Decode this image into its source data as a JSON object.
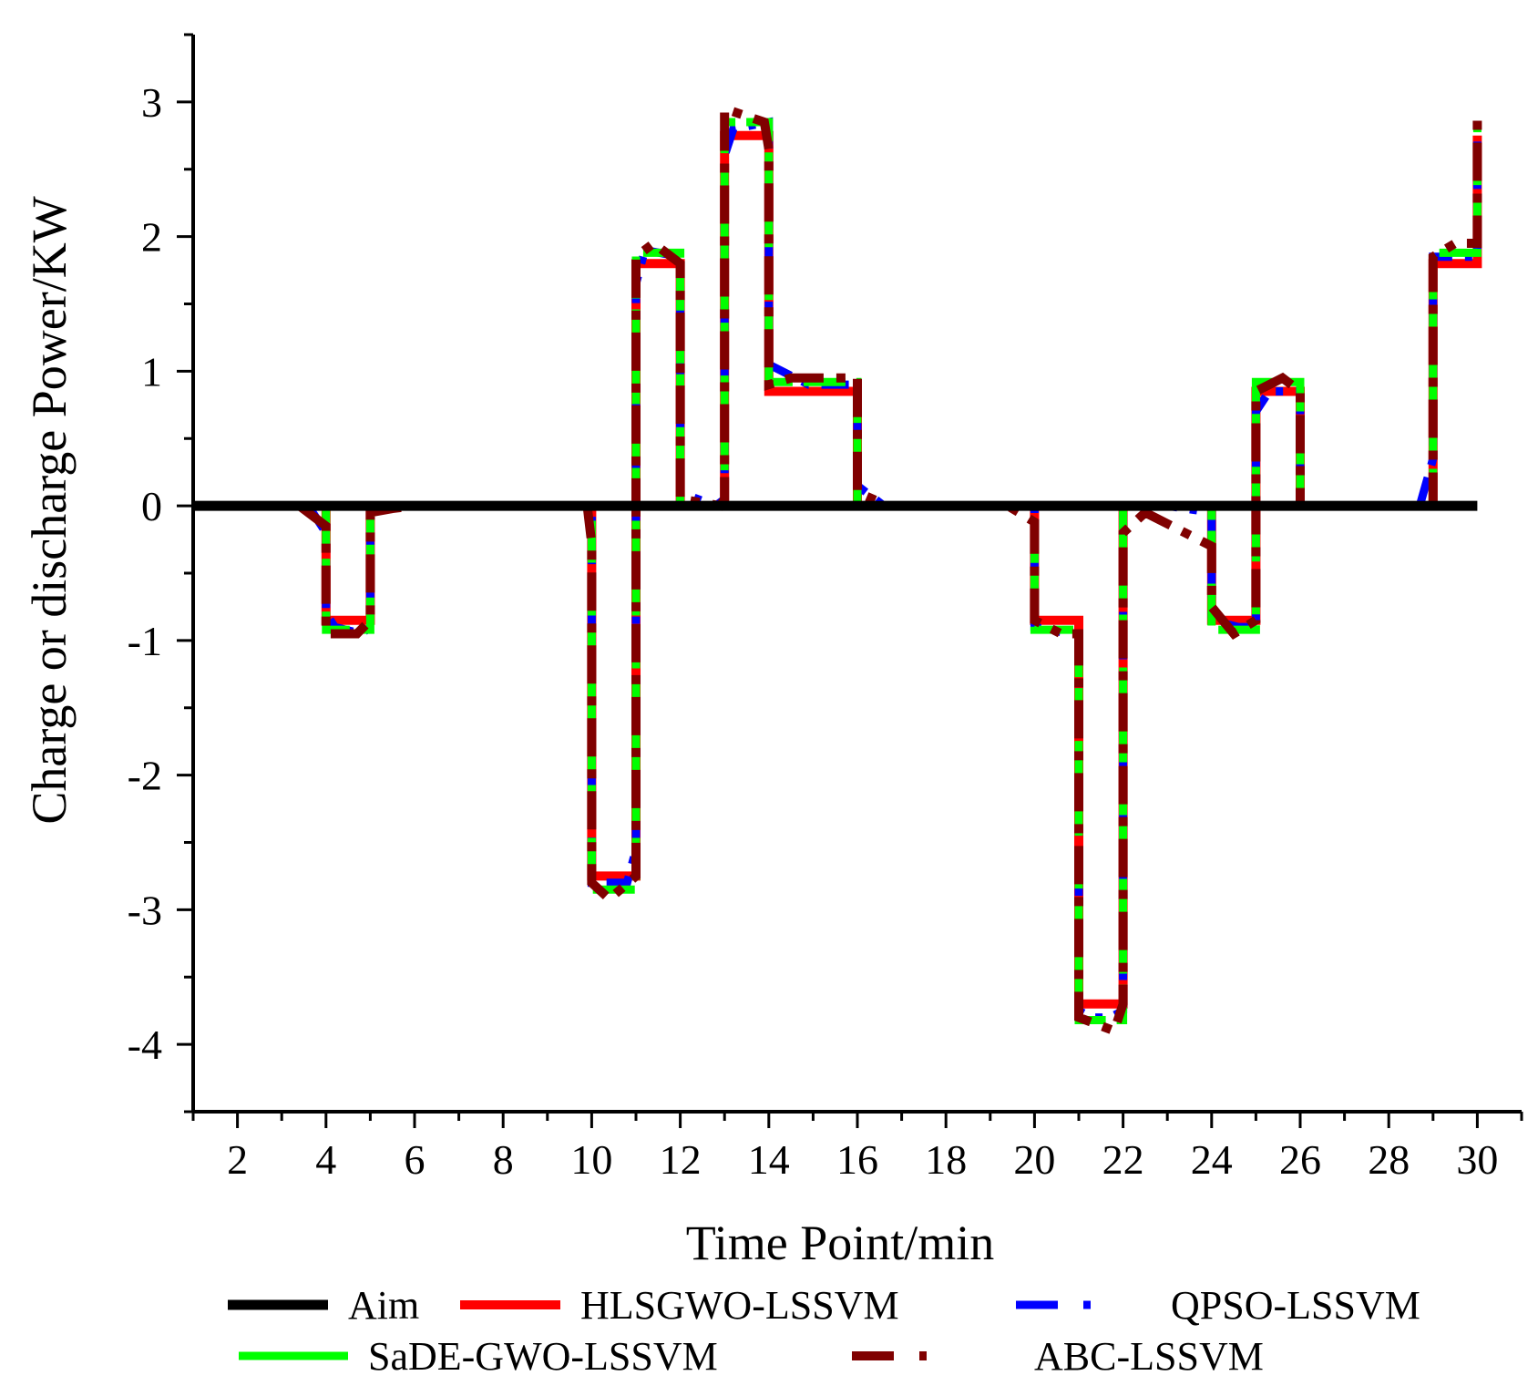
{
  "chart_data": {
    "type": "line",
    "title": "",
    "xlabel": "Time Point/min",
    "ylabel": "Charge or discharge Power/KW",
    "xlim": [
      1,
      31
    ],
    "ylim": [
      -4.5,
      3.5
    ],
    "xticks": [
      2,
      4,
      6,
      8,
      10,
      12,
      14,
      16,
      18,
      20,
      22,
      24,
      26,
      28,
      30
    ],
    "yticks": [
      3,
      2,
      1,
      0,
      -1,
      -2,
      -3,
      -4
    ],
    "xtick_labels": [
      "2",
      "4",
      "6",
      "8",
      "10",
      "12",
      "14",
      "16",
      "18",
      "20",
      "22",
      "24",
      "26",
      "28",
      "30"
    ],
    "ytick_labels": [
      "3",
      "2",
      "1",
      "0",
      "-1",
      "-2",
      "-3",
      "-4"
    ],
    "grid": false,
    "legend_position": "bottom",
    "series": [
      {
        "name": "Aim",
        "color": "#000000",
        "style": "solid",
        "x": [
          1,
          30
        ],
        "y": [
          0,
          0
        ]
      },
      {
        "name": "HLSGWO-LSSVM",
        "color": "#ff0000",
        "style": "solid",
        "x": [
          4,
          4,
          5,
          5,
          10,
          10,
          11,
          11,
          12,
          12,
          13,
          13,
          14,
          14,
          16,
          16,
          20,
          20,
          21,
          21,
          22,
          22,
          24,
          24,
          25,
          25,
          26,
          26,
          29,
          29,
          30,
          30
        ],
        "y": [
          0,
          -0.85,
          -0.85,
          0,
          0,
          -2.75,
          -2.75,
          1.8,
          1.8,
          0,
          0,
          2.75,
          2.75,
          0.85,
          0.85,
          0,
          0,
          -0.85,
          -0.85,
          -3.7,
          -3.7,
          0,
          0,
          -0.85,
          -0.85,
          0.85,
          0.85,
          0,
          0,
          1.8,
          1.8,
          2.75
        ]
      },
      {
        "name": "QPSO-LSSVM",
        "color": "#0000ff",
        "style": "dash-dot",
        "x": [
          3.6,
          4,
          4,
          4.2,
          4.8,
          5,
          5,
          10,
          10,
          10.8,
          11,
          11,
          11.2,
          12,
          12,
          12.8,
          13,
          13,
          13.2,
          14,
          14,
          14.3,
          14.9,
          16,
          16,
          16.6,
          20,
          20,
          20.8,
          21,
          21,
          21.3,
          21.7,
          22,
          22,
          23,
          24,
          24,
          24.6,
          25,
          25,
          25.3,
          26,
          26,
          28.7,
          29,
          29,
          30,
          30
        ],
        "y": [
          0,
          -0.2,
          -0.8,
          -0.9,
          -0.95,
          -0.9,
          0,
          0,
          -2.8,
          -2.8,
          -2.55,
          1.65,
          1.9,
          1.85,
          0.1,
          0,
          0.05,
          2.6,
          2.8,
          2.85,
          1.05,
          1.0,
          0.9,
          0.9,
          0.15,
          0,
          0,
          -0.9,
          -0.95,
          -0.95,
          -3.75,
          -3.8,
          -3.8,
          -3.75,
          0,
          0,
          -0.05,
          -0.85,
          -0.9,
          -0.9,
          0.7,
          0.85,
          0.85,
          0,
          0,
          0.35,
          1.85,
          1.85,
          2.8
        ]
      },
      {
        "name": "SaDE-GWO-LSSVM",
        "color": "#00ff00",
        "style": "solid",
        "x": [
          4,
          4,
          5,
          5,
          10,
          10,
          11,
          11,
          12,
          12,
          13,
          13,
          14,
          14,
          16,
          16,
          20,
          20,
          21,
          21,
          22,
          22,
          24,
          24,
          25,
          25,
          26,
          26,
          29,
          29,
          30,
          30
        ],
        "y": [
          0,
          -0.92,
          -0.92,
          0,
          0,
          -2.85,
          -2.85,
          1.88,
          1.88,
          0,
          0,
          2.85,
          2.85,
          0.92,
          0.92,
          0,
          0,
          -0.92,
          -0.92,
          -3.82,
          -3.82,
          0,
          0,
          -0.92,
          -0.92,
          0.92,
          0.92,
          0,
          0,
          1.88,
          1.88,
          2.85
        ]
      },
      {
        "name": "ABC-LSSVM",
        "color": "#800000",
        "style": "dash-dot",
        "x": [
          3.4,
          4,
          4,
          4.7,
          5,
          5,
          5.5,
          6,
          9.9,
          10,
          10,
          10.4,
          11,
          11,
          11.4,
          12,
          12,
          12.9,
          13,
          13,
          13.9,
          14,
          14,
          14.5,
          16,
          16,
          16.7,
          19.4,
          20,
          20,
          20.6,
          21,
          21,
          21.8,
          22,
          22,
          22.5,
          24,
          24,
          24.5,
          25,
          25,
          25.6,
          26,
          26,
          29,
          29,
          29.5,
          30,
          30
        ],
        "y": [
          0,
          -0.15,
          -0.95,
          -0.95,
          -0.85,
          -0.05,
          -0.02,
          0,
          0,
          -0.28,
          -2.8,
          -2.92,
          -2.75,
          1.85,
          1.95,
          1.8,
          0.05,
          0,
          0.05,
          2.95,
          2.85,
          2.65,
          0.9,
          0.95,
          0.95,
          0.1,
          0,
          0,
          -0.12,
          -0.85,
          -0.95,
          -0.95,
          -3.8,
          -3.9,
          -3.7,
          -0.2,
          -0.05,
          -0.3,
          -0.75,
          -0.95,
          -0.85,
          0.85,
          0.95,
          0.85,
          0,
          0,
          1.85,
          1.95,
          1.95,
          2.95
        ]
      }
    ]
  }
}
